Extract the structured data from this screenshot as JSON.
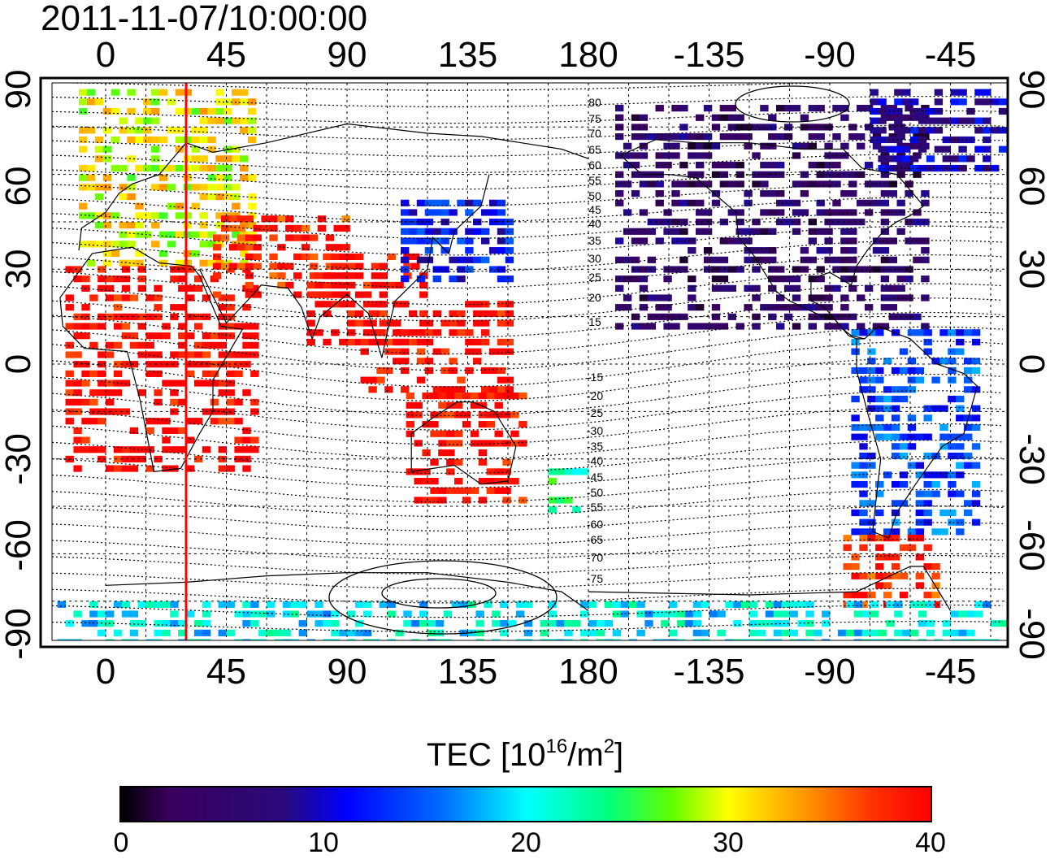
{
  "title": "2011-11-07/10:00:00",
  "axes": {
    "top_ticks": [
      "0",
      "45",
      "90",
      "135",
      "180",
      "-135",
      "-90",
      "-45"
    ],
    "bottom_ticks": [
      "0",
      "45",
      "90",
      "135",
      "180",
      "-135",
      "-90",
      "-45"
    ],
    "left_ticks": [
      "90",
      "60",
      "30",
      "0",
      "-30",
      "-60",
      "-90"
    ],
    "right_ticks": [
      "90",
      "60",
      "30",
      "0",
      "-30",
      "-60",
      "-90"
    ]
  },
  "contour_labels": [
    "80",
    "75",
    "70",
    "65",
    "60",
    "55",
    "50",
    "45",
    "40",
    "35",
    "30",
    "25",
    "20",
    "15",
    "-15",
    "-20",
    "-25",
    "-30",
    "-35",
    "-40",
    "-45",
    "-50",
    "-55",
    "-60",
    "-65",
    "-70",
    "-75"
  ],
  "colorbar": {
    "label": "TEC  [10",
    "label_sup1": "16",
    "label_mid": "/m",
    "label_sup2": "2",
    "label_end": "]",
    "ticks": [
      "0",
      "10",
      "20",
      "30",
      "40"
    ],
    "min": 0,
    "max": 40,
    "colormap": [
      "#000000",
      "#3a0060",
      "#0000ff",
      "#00ffff",
      "#00ff80",
      "#ffff00",
      "#ff0000"
    ]
  },
  "marker_line": {
    "longitude": 30,
    "color": "#ff0000"
  },
  "regions": [
    {
      "name": "europe",
      "lon": [
        -10,
        55
      ],
      "lat": [
        30,
        87
      ],
      "tec": 30
    },
    {
      "name": "africa",
      "lon": [
        -15,
        55
      ],
      "lat": [
        -35,
        30
      ],
      "tec": 40
    },
    {
      "name": "middle-east",
      "lon": [
        40,
        90
      ],
      "lat": [
        20,
        45
      ],
      "tec": 38
    },
    {
      "name": "south-asia",
      "lon": [
        75,
        120
      ],
      "lat": [
        5,
        35
      ],
      "tec": 40
    },
    {
      "name": "southeast-asia",
      "lon": [
        95,
        150
      ],
      "lat": [
        -10,
        20
      ],
      "tec": 40
    },
    {
      "name": "east-asia",
      "lon": [
        110,
        150
      ],
      "lat": [
        25,
        50
      ],
      "tec": 12
    },
    {
      "name": "australia",
      "lon": [
        112,
        155
      ],
      "lat": [
        -45,
        -10
      ],
      "tec": 40
    },
    {
      "name": "new-zealand",
      "lon": [
        165,
        180
      ],
      "lat": [
        -48,
        -34
      ],
      "tec": 24
    },
    {
      "name": "north-america",
      "lon": [
        -170,
        -55
      ],
      "lat": [
        10,
        80
      ],
      "tec": 5
    },
    {
      "name": "greenland",
      "lon": [
        -75,
        -20
      ],
      "lat": [
        60,
        85
      ],
      "tec": 9
    },
    {
      "name": "south-america",
      "lon": [
        -82,
        -35
      ],
      "lat": [
        -55,
        10
      ],
      "tec": 14
    },
    {
      "name": "patagonia",
      "lon": [
        -85,
        -50
      ],
      "lat": [
        -78,
        -55
      ],
      "tec": 38
    },
    {
      "name": "antarctica",
      "lon": [
        -180,
        180
      ],
      "lat": [
        -90,
        -75
      ],
      "tec": 20
    }
  ]
}
